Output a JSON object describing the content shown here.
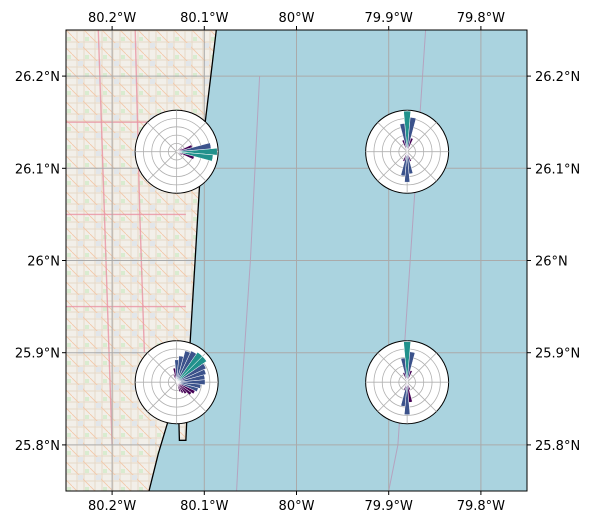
{
  "map": {
    "extent": {
      "lon_min": -80.25,
      "lon_max": -79.75,
      "lat_min": 25.75,
      "lat_max": 26.25
    },
    "lon_ticks": [
      {
        "value": -80.2,
        "label": "80.2°W"
      },
      {
        "value": -80.1,
        "label": "80.1°W"
      },
      {
        "value": -80.0,
        "label": "80°W"
      },
      {
        "value": -79.9,
        "label": "79.9°W"
      },
      {
        "value": -79.8,
        "label": "79.8°W"
      }
    ],
    "lat_ticks": [
      {
        "value": 26.2,
        "label": "26.2°N"
      },
      {
        "value": 26.1,
        "label": "26.1°N"
      },
      {
        "value": 26.0,
        "label": "26°N"
      },
      {
        "value": 25.9,
        "label": "25.9°N"
      },
      {
        "value": 25.8,
        "label": "25.8°N"
      }
    ],
    "gridlines": true,
    "colors": {
      "ocean": "#aad3df",
      "land": "#f2efe9",
      "grid": "#aaaaaa",
      "coastline": "#000000",
      "rose_low": "#440154",
      "rose_mid": "#3b528b",
      "rose_high": "#21918c"
    },
    "coastline": [
      [
        -80.087,
        26.25
      ],
      [
        -80.093,
        26.2
      ],
      [
        -80.099,
        26.15
      ],
      [
        -80.104,
        26.1
      ],
      [
        -80.107,
        26.05
      ],
      [
        -80.11,
        26.0
      ],
      [
        -80.113,
        25.95
      ],
      [
        -80.116,
        25.9
      ],
      [
        -80.118,
        25.85
      ],
      [
        -80.12,
        25.805
      ],
      [
        -80.127,
        25.805
      ],
      [
        -80.128,
        25.84
      ],
      [
        -80.135,
        25.84
      ],
      [
        -80.15,
        25.79
      ],
      [
        -80.16,
        25.75
      ]
    ],
    "roses": [
      {
        "name": "northwest",
        "lon": -80.13,
        "lat": 26.118,
        "radius_deg": 0.045,
        "ring_count": 4,
        "petals": [
          {
            "dir": 90,
            "length": 1.0
          },
          {
            "dir": 80,
            "length": 0.85
          },
          {
            "dir": 100,
            "length": 0.9
          },
          {
            "dir": 70,
            "length": 0.4
          },
          {
            "dir": 110,
            "length": 0.45
          },
          {
            "dir": 60,
            "length": 0.15
          },
          {
            "dir": 120,
            "length": 0.15
          }
        ]
      },
      {
        "name": "northeast",
        "lon": -79.88,
        "lat": 26.118,
        "radius_deg": 0.045,
        "ring_count": 4,
        "petals": [
          {
            "dir": 0,
            "length": 1.0
          },
          {
            "dir": 10,
            "length": 0.85
          },
          {
            "dir": 350,
            "length": 0.7
          },
          {
            "dir": 180,
            "length": 0.75
          },
          {
            "dir": 170,
            "length": 0.55
          },
          {
            "dir": 190,
            "length": 0.6
          },
          {
            "dir": 20,
            "length": 0.35
          },
          {
            "dir": 340,
            "length": 0.3
          },
          {
            "dir": 160,
            "length": 0.25
          },
          {
            "dir": 200,
            "length": 0.25
          }
        ]
      },
      {
        "name": "southwest",
        "lon": -80.13,
        "lat": 25.868,
        "radius_deg": 0.045,
        "ring_count": 4,
        "petals": [
          {
            "dir": 0,
            "length": 0.55
          },
          {
            "dir": 10,
            "length": 0.65
          },
          {
            "dir": 20,
            "length": 0.8
          },
          {
            "dir": 30,
            "length": 0.85
          },
          {
            "dir": 40,
            "length": 0.9
          },
          {
            "dir": 50,
            "length": 0.9
          },
          {
            "dir": 60,
            "length": 0.8
          },
          {
            "dir": 70,
            "length": 0.75
          },
          {
            "dir": 80,
            "length": 0.7
          },
          {
            "dir": 90,
            "length": 0.7
          },
          {
            "dir": 100,
            "length": 0.6
          },
          {
            "dir": 110,
            "length": 0.55
          },
          {
            "dir": 120,
            "length": 0.5
          },
          {
            "dir": 130,
            "length": 0.45
          },
          {
            "dir": 140,
            "length": 0.35
          },
          {
            "dir": 150,
            "length": 0.3
          },
          {
            "dir": 160,
            "length": 0.25
          },
          {
            "dir": 350,
            "length": 0.35
          },
          {
            "dir": 340,
            "length": 0.2
          }
        ]
      },
      {
        "name": "southeast",
        "lon": -79.88,
        "lat": 25.868,
        "radius_deg": 0.045,
        "ring_count": 4,
        "petals": [
          {
            "dir": 0,
            "length": 1.0
          },
          {
            "dir": 10,
            "length": 0.75
          },
          {
            "dir": 350,
            "length": 0.6
          },
          {
            "dir": 180,
            "length": 0.8
          },
          {
            "dir": 190,
            "length": 0.6
          },
          {
            "dir": 170,
            "length": 0.5
          },
          {
            "dir": 20,
            "length": 0.3
          },
          {
            "dir": 340,
            "length": 0.25
          },
          {
            "dir": 160,
            "length": 0.2
          },
          {
            "dir": 200,
            "length": 0.2
          }
        ]
      }
    ]
  }
}
